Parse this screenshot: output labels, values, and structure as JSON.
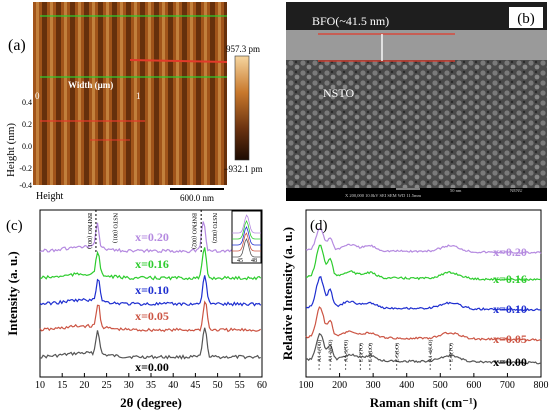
{
  "panels": {
    "a": {
      "label": "(a)",
      "scalebar_max": "957.3 pm",
      "scalebar_min": "−932.1 pm",
      "inset_label": "Width (μm)",
      "inset_x0": "0",
      "inset_x1": "1",
      "ylabel": "Height (nm)",
      "yticks": [
        "0.4",
        "0.2",
        "0.0",
        "-0.2",
        "-0.4"
      ],
      "mode_label": "Height",
      "scale_label": "600.0 nm",
      "colors": {
        "dark": "#3a1a06",
        "mid": "#b5621f",
        "light": "#e8a65a"
      }
    },
    "b": {
      "label": "(b)",
      "film_label": "BFO(~41.5 nm)",
      "substrate_label": "NSTO",
      "sem_info": "X 200,000      10.0kV SEI      SEM      WD 11.5mm",
      "sem_scale": "50 nm",
      "sem_brand": "NENU"
    },
    "c": {
      "label": "(c)",
      "peak_labels": [
        "BNFMO (001)",
        "NSTO (001)",
        "BNFMO (002)",
        "NSTO (002)"
      ],
      "inset_ticks": [
        "45",
        "48"
      ]
    },
    "d": {
      "label": "(d)",
      "mode_labels": [
        "A1-1(TO)",
        "A1-2(LO)",
        "A1-3(TO)",
        "E-3(TO)",
        "E-4(LO)",
        "E-5(LO)",
        "A1-4(LO)",
        "E-8(TO)"
      ]
    }
  },
  "chart_data": [
    {
      "type": "line",
      "panel": "c",
      "title": "",
      "xlabel": "2θ (degree)",
      "ylabel": "Intensity (a. u.)",
      "xlim": [
        10,
        60
      ],
      "xticks": [
        10,
        15,
        20,
        25,
        30,
        35,
        40,
        45,
        50,
        55,
        60
      ],
      "peaks_2theta": [
        22.6,
        46.3
      ],
      "series": [
        {
          "name": "x=0.00",
          "color": "#555555",
          "peaks": [
            23.0,
            47.1
          ]
        },
        {
          "name": "x=0.05",
          "color": "#cc5544",
          "peaks": [
            23.1,
            47.2
          ]
        },
        {
          "name": "x=0.10",
          "color": "#1f2fd0",
          "peaks": [
            23.1,
            47.1
          ]
        },
        {
          "name": "x=0.16",
          "color": "#2ecc2e",
          "peaks": [
            23.0,
            47.0
          ]
        },
        {
          "name": "x=0.20",
          "color": "#b58ae0",
          "peaks": [
            22.9,
            46.8
          ]
        }
      ]
    },
    {
      "type": "line",
      "panel": "d",
      "title": "",
      "xlabel": "Raman shift (cm⁻¹)",
      "ylabel": "Relative Intensity (a. u.)",
      "xlim": [
        100,
        800
      ],
      "xticks": [
        100,
        200,
        300,
        400,
        500,
        600,
        700,
        800
      ],
      "mode_positions": [
        139,
        172,
        218,
        262,
        290,
        370,
        470,
        530
      ],
      "series": [
        {
          "name": "x=0.00",
          "color": "#555555"
        },
        {
          "name": "x=0.05",
          "color": "#cc5544"
        },
        {
          "name": "x=0.10",
          "color": "#1f2fd0"
        },
        {
          "name": "x=0.16",
          "color": "#2ecc2e"
        },
        {
          "name": "x=0.20",
          "color": "#b58ae0"
        }
      ]
    }
  ]
}
